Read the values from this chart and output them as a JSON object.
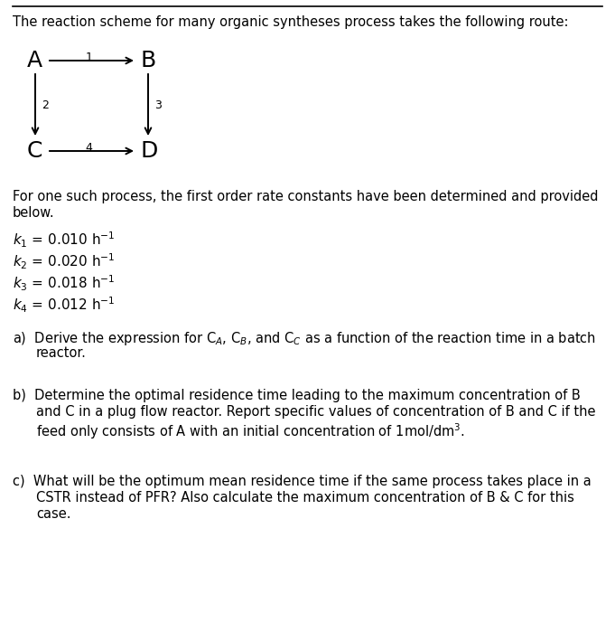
{
  "bg_color": "#ffffff",
  "text_color": "#000000",
  "title_line": "The reaction scheme for many organic syntheses process takes the following route:",
  "k_values": [
    "0.010",
    "0.020",
    "0.018",
    "0.012"
  ],
  "k_subs": [
    "1",
    "2",
    "3",
    "4"
  ],
  "body_fontsize": 10.5,
  "letter_fontsize": 18,
  "arrow_label_fontsize": 9,
  "fig_width": 6.81,
  "fig_height": 6.99,
  "dpi": 100
}
